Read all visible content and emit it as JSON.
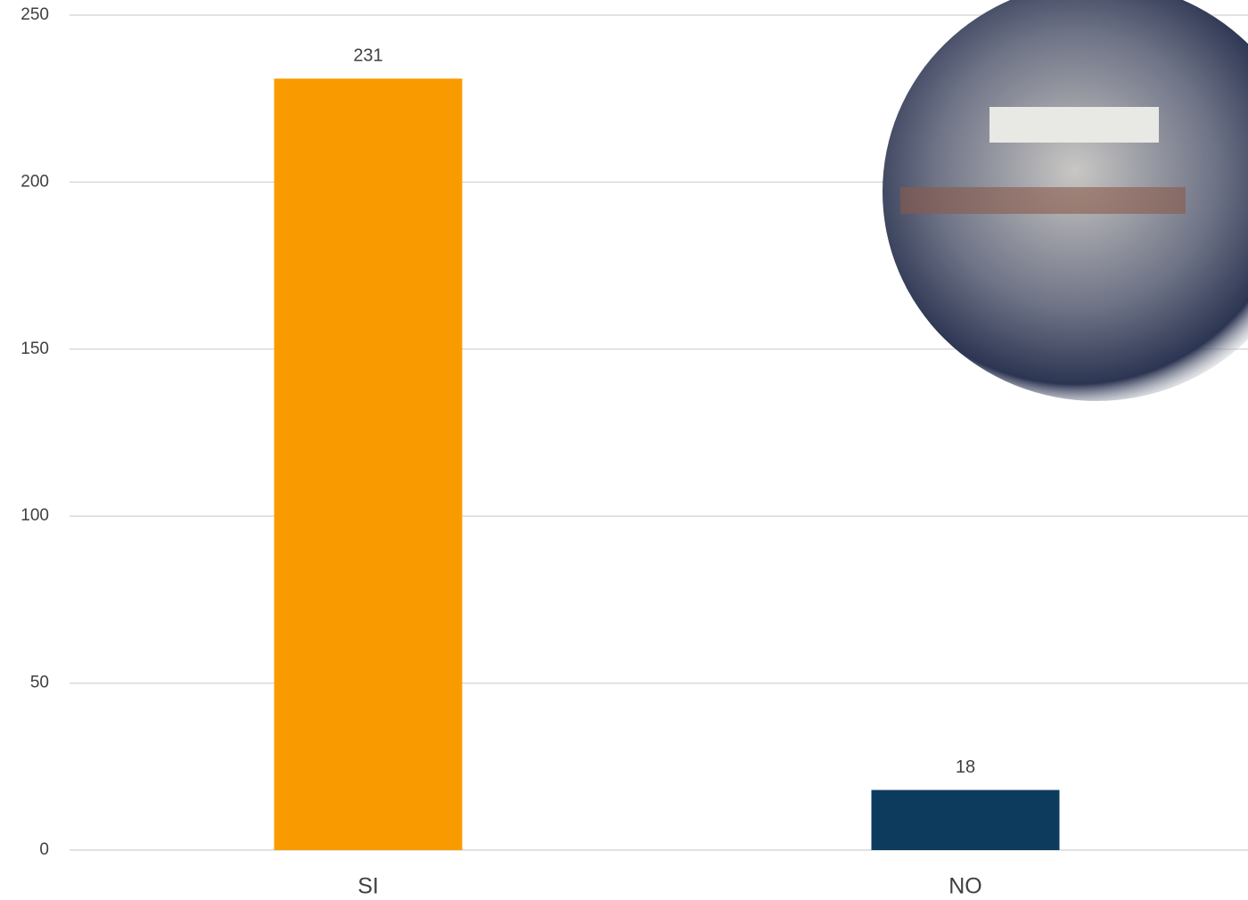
{
  "chart_data": {
    "type": "bar",
    "categories": [
      "SI",
      "NO"
    ],
    "values": [
      231,
      18
    ],
    "colors": [
      "#f99b00",
      "#0d3b5e"
    ],
    "ylim": [
      0,
      250
    ],
    "yticks": [
      0,
      50,
      100,
      150,
      200,
      250
    ],
    "grid": true,
    "data_labels": true
  }
}
